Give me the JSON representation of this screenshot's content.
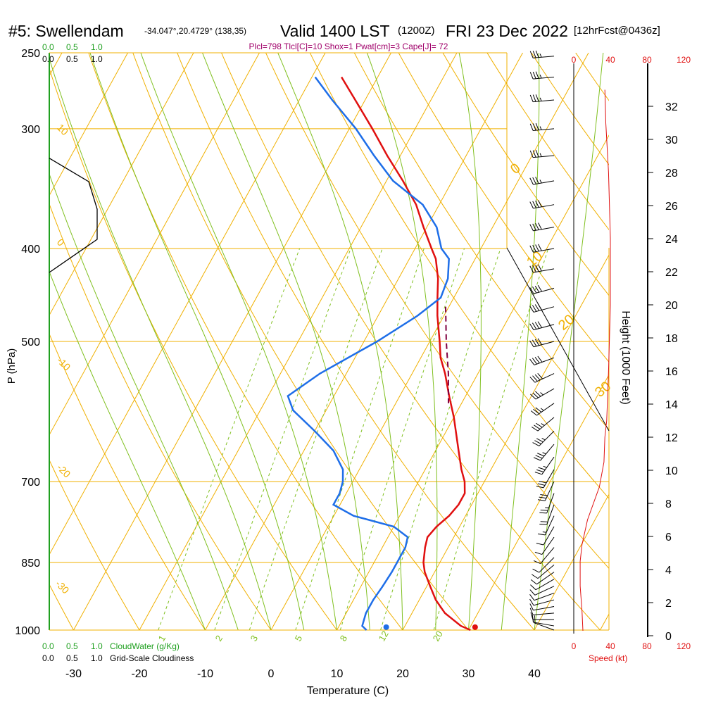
{
  "header": {
    "title": "#5: Swellendam",
    "coords": "-34.047°,20.4729° (138,35)",
    "valid": "Valid 1400 LST",
    "zulu": "(1200Z)",
    "date": "FRI 23 Dec 2022",
    "forecast": "[12hrFcst@0436z]"
  },
  "parcel_info": "Plcl=798 Tlcl[C]=10 Shox=1 Pwat[cm]=3 Cape[J]= 72",
  "colors": {
    "isotherm": "#f0b000",
    "mixing_ratio": "#80c020",
    "temperature": "#e01010",
    "dewpoint": "#1e6ee8",
    "parcel": "#800040",
    "cloudwater": "#20a020",
    "header_accent": "#a0006a",
    "wind": "#000000",
    "speed": "#e01010"
  },
  "chart_data": {
    "type": "skew-t",
    "xlabel": "Temperature (C)",
    "ylabel": "P (hPa)",
    "right_ylabel": "Height (1000 Feet)",
    "x_ticks": [
      "-30",
      "-20",
      "-10",
      "0",
      "10",
      "20",
      "30",
      "40"
    ],
    "pressure_ticks": [
      "250",
      "300",
      "400",
      "500",
      "700",
      "850",
      "1000"
    ],
    "pressure_values": [
      250,
      300,
      400,
      500,
      700,
      850,
      1000
    ],
    "height_ticks": [
      "0",
      "2",
      "4",
      "6",
      "8",
      "10",
      "12",
      "14",
      "16",
      "18",
      "20",
      "22",
      "24",
      "26",
      "28",
      "30",
      "32"
    ],
    "isotherm_labels": [
      "10",
      "0",
      "-10",
      "-20",
      "-30"
    ],
    "adiabat_labels": [
      "0",
      "10",
      "20",
      "30"
    ],
    "mixing_ratio_labels": [
      "1",
      "2",
      "3",
      "5",
      "8",
      "12",
      "20"
    ],
    "cloudwater_scale": [
      "0.0",
      "0.5",
      "1.0"
    ],
    "cloudwater_label": "CloudWater (g/Kg)",
    "cloudiness_scale": [
      "0.0",
      "0.5",
      "1.0"
    ],
    "cloudiness_label": "Grid-Scale Cloudiness",
    "speed_scale": [
      "0",
      "40",
      "80",
      "120"
    ],
    "speed_label": "Speed (kt)",
    "temperature": [
      [
        1000,
        30.3
      ],
      [
        990,
        28.5
      ],
      [
        960,
        25.0
      ],
      [
        930,
        22.5
      ],
      [
        900,
        20.5
      ],
      [
        870,
        18.5
      ],
      [
        850,
        17.5
      ],
      [
        820,
        16.5
      ],
      [
        800,
        16.0
      ],
      [
        780,
        16.5
      ],
      [
        760,
        17.5
      ],
      [
        740,
        18.0
      ],
      [
        720,
        18.0
      ],
      [
        700,
        17.0
      ],
      [
        680,
        15.5
      ],
      [
        650,
        13.5
      ],
      [
        600,
        10.0
      ],
      [
        570,
        7.5
      ],
      [
        540,
        5.0
      ],
      [
        520,
        3.0
      ],
      [
        500,
        1.5
      ],
      [
        470,
        -1.0
      ],
      [
        450,
        -2.5
      ],
      [
        430,
        -4.0
      ],
      [
        410,
        -6.0
      ],
      [
        400,
        -7.5
      ],
      [
        380,
        -10.5
      ],
      [
        360,
        -13.5
      ],
      [
        340,
        -17.5
      ],
      [
        320,
        -22.0
      ],
      [
        300,
        -26.5
      ],
      [
        280,
        -31.5
      ],
      [
        265,
        -35.5
      ]
    ],
    "dewpoint": [
      [
        1000,
        14.5
      ],
      [
        990,
        13.5
      ],
      [
        960,
        13.0
      ],
      [
        930,
        13.0
      ],
      [
        900,
        13.3
      ],
      [
        870,
        13.5
      ],
      [
        850,
        13.5
      ],
      [
        820,
        13.5
      ],
      [
        800,
        13.0
      ],
      [
        780,
        10.0
      ],
      [
        760,
        3.0
      ],
      [
        740,
        -1.0
      ],
      [
        720,
        -1.0
      ],
      [
        700,
        -1.5
      ],
      [
        680,
        -2.5
      ],
      [
        650,
        -5.5
      ],
      [
        620,
        -10.0
      ],
      [
        590,
        -15.0
      ],
      [
        570,
        -17.0
      ],
      [
        540,
        -14.0
      ],
      [
        500,
        -8.0
      ],
      [
        470,
        -4.0
      ],
      [
        450,
        -2.0
      ],
      [
        430,
        -2.5
      ],
      [
        410,
        -4.0
      ],
      [
        400,
        -6.0
      ],
      [
        380,
        -8.5
      ],
      [
        360,
        -12.5
      ],
      [
        340,
        -19.0
      ],
      [
        320,
        -24.0
      ],
      [
        300,
        -29.0
      ],
      [
        280,
        -35.0
      ],
      [
        265,
        -39.5
      ]
    ],
    "parcel": [
      [
        460,
        -0.5
      ],
      [
        500,
        2.5
      ],
      [
        540,
        5.5
      ],
      [
        580,
        8.0
      ]
    ],
    "surface_temperature": 31.0,
    "surface_dewpoint": 17.5,
    "freezing_level_profile": [
      [
        350,
        0.0
      ],
      [
        340,
        12.0
      ],
      [
        305,
        14.0
      ],
      [
        270,
        1.0
      ]
    ],
    "speed_profile": [
      [
        0.3,
        10
      ],
      [
        1.5,
        9
      ],
      [
        3.0,
        7
      ],
      [
        4.5,
        7
      ],
      [
        5.5,
        9
      ],
      [
        7.0,
        15
      ],
      [
        9.0,
        28
      ],
      [
        10.5,
        33
      ],
      [
        12.0,
        34
      ],
      [
        13.0,
        36
      ],
      [
        16.0,
        38
      ],
      [
        20.0,
        40
      ],
      [
        24.0,
        40
      ],
      [
        28.0,
        38
      ],
      [
        31.0,
        35
      ],
      [
        33.0,
        34
      ]
    ],
    "wind_barbs": [
      [
        1000,
        290,
        12
      ],
      [
        990,
        280,
        12
      ],
      [
        975,
        270,
        11
      ],
      [
        960,
        265,
        10
      ],
      [
        945,
        260,
        10
      ],
      [
        930,
        255,
        10
      ],
      [
        915,
        250,
        9
      ],
      [
        900,
        245,
        9
      ],
      [
        885,
        240,
        8
      ],
      [
        870,
        235,
        8
      ],
      [
        855,
        230,
        8
      ],
      [
        840,
        225,
        8
      ],
      [
        820,
        220,
        8
      ],
      [
        800,
        215,
        9
      ],
      [
        780,
        210,
        12
      ],
      [
        760,
        205,
        16
      ],
      [
        740,
        200,
        22
      ],
      [
        720,
        200,
        27
      ],
      [
        700,
        205,
        30
      ],
      [
        680,
        210,
        32
      ],
      [
        660,
        215,
        33
      ],
      [
        640,
        220,
        34
      ],
      [
        620,
        225,
        34
      ],
      [
        600,
        230,
        35
      ],
      [
        580,
        235,
        36
      ],
      [
        560,
        240,
        37
      ],
      [
        540,
        245,
        38
      ],
      [
        520,
        250,
        40
      ],
      [
        500,
        255,
        40
      ],
      [
        480,
        255,
        40
      ],
      [
        460,
        255,
        40
      ],
      [
        440,
        255,
        40
      ],
      [
        420,
        260,
        40
      ],
      [
        400,
        260,
        40
      ],
      [
        380,
        260,
        39
      ],
      [
        360,
        260,
        38
      ],
      [
        340,
        260,
        37
      ],
      [
        320,
        265,
        36
      ],
      [
        300,
        265,
        35
      ],
      [
        280,
        265,
        34
      ],
      [
        265,
        265,
        33
      ],
      [
        252,
        265,
        33
      ]
    ]
  }
}
